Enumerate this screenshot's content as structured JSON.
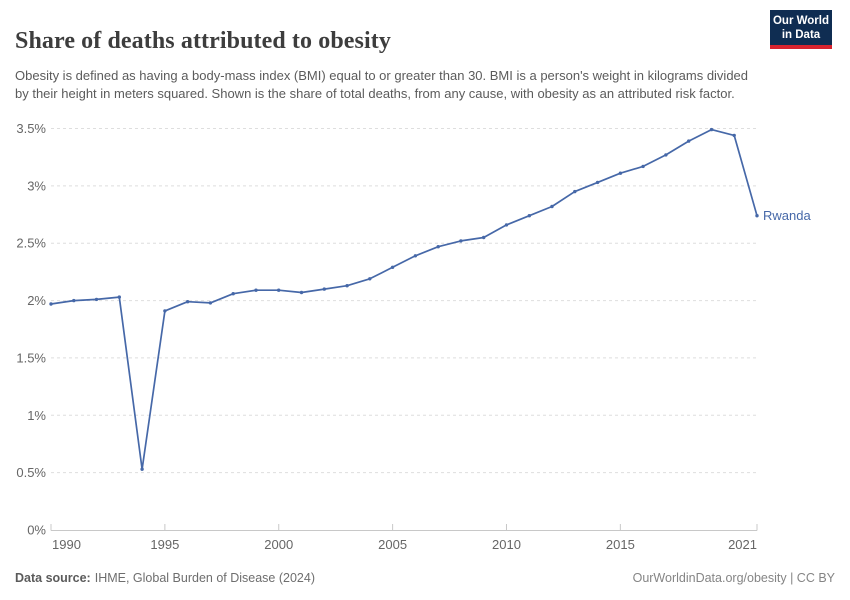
{
  "header": {
    "title": "Share of deaths attributed to obesity",
    "subtitle": "Obesity is defined as having a body-mass index (BMI) equal to or greater than 30. BMI is a person's weight in kilograms divided by their height in meters squared. Shown is the share of total deaths, from any cause, with obesity as an attributed risk factor.",
    "logo": {
      "line1": "Our World",
      "line2": "in Data"
    }
  },
  "chart_data": {
    "type": "line",
    "title": "Share of deaths attributed to obesity",
    "xlabel": "",
    "ylabel": "",
    "xlim": [
      1990,
      2021
    ],
    "ylim": [
      0,
      3.5
    ],
    "grid": true,
    "legend_position": "end-of-line-label",
    "x_ticks": [
      1990,
      1995,
      2000,
      2005,
      2010,
      2015,
      2021
    ],
    "x_tick_labels": [
      "1990",
      "1995",
      "2000",
      "2005",
      "2010",
      "2015",
      "2021"
    ],
    "y_ticks": [
      0,
      0.5,
      1,
      1.5,
      2,
      2.5,
      3,
      3.5
    ],
    "y_tick_labels": [
      "0%",
      "0.5%",
      "1%",
      "1.5%",
      "2%",
      "2.5%",
      "3%",
      "3.5%"
    ],
    "series": [
      {
        "name": "Rwanda",
        "color": "#4668a8",
        "x": [
          1990,
          1991,
          1992,
          1993,
          1994,
          1995,
          1996,
          1997,
          1998,
          1999,
          2000,
          2001,
          2002,
          2003,
          2004,
          2005,
          2006,
          2007,
          2008,
          2009,
          2010,
          2011,
          2012,
          2013,
          2014,
          2015,
          2016,
          2017,
          2018,
          2019,
          2020,
          2021
        ],
        "values": [
          1.97,
          2.0,
          2.01,
          2.03,
          0.53,
          1.91,
          1.99,
          1.98,
          2.06,
          2.09,
          2.09,
          2.07,
          2.1,
          2.13,
          2.19,
          2.29,
          2.39,
          2.47,
          2.52,
          2.55,
          2.66,
          2.74,
          2.82,
          2.95,
          3.03,
          3.11,
          3.17,
          3.27,
          3.39,
          3.49,
          3.44,
          2.74
        ]
      }
    ]
  },
  "footer": {
    "source_label": "Data source:",
    "source_text": "IHME, Global Burden of Disease (2024)",
    "attribution": "OurWorldinData.org/obesity | CC BY"
  },
  "colors": {
    "line": "#4668a8",
    "grid": "#dedede",
    "axis": "#c8c8c8",
    "tick_text": "#666666",
    "logo_bg": "#0f2d52",
    "logo_accent": "#d8232e"
  }
}
